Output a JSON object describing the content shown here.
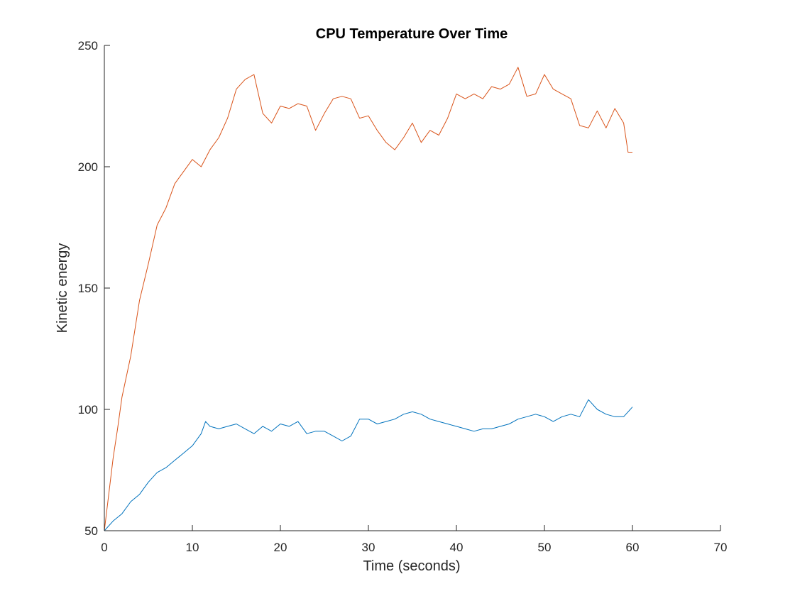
{
  "chart_data": {
    "type": "line",
    "title": "CPU Temperature Over Time",
    "xlabel": "Time (seconds)",
    "ylabel": "Kinetic energy",
    "xlim": [
      0,
      70
    ],
    "ylim": [
      50,
      250
    ],
    "xticks": [
      "0",
      "10",
      "20",
      "30",
      "40",
      "50",
      "60",
      "70"
    ],
    "yticks": [
      "50",
      "100",
      "150",
      "200",
      "250"
    ],
    "grid": false,
    "legend": "none",
    "series": [
      {
        "color": "#0072BD",
        "x": [
          0,
          1,
          2,
          3,
          4,
          5,
          6,
          7,
          8,
          9,
          10,
          11,
          11.5,
          12,
          13,
          14,
          15,
          16,
          17,
          18,
          19,
          20,
          21,
          22,
          23,
          24,
          25,
          26,
          27,
          28,
          29,
          30,
          31,
          32,
          33,
          34,
          35,
          36,
          37,
          38,
          39,
          40,
          41,
          42,
          43,
          44,
          45,
          46,
          47,
          48,
          49,
          50,
          51,
          52,
          53,
          54,
          55,
          56,
          57,
          58,
          59,
          60
        ],
        "y": [
          50,
          54,
          57,
          62,
          65,
          70,
          74,
          76,
          79,
          82,
          85,
          90,
          95,
          93,
          92,
          93,
          94,
          92,
          90,
          93,
          91,
          94,
          93,
          95,
          90,
          91,
          91,
          89,
          87,
          89,
          96,
          96,
          94,
          95,
          96,
          98,
          99,
          98,
          96,
          95,
          94,
          93,
          92,
          91,
          92,
          92,
          93,
          94,
          96,
          97,
          98,
          97,
          95,
          97,
          98,
          97,
          104,
          100,
          98,
          97,
          97,
          101
        ]
      },
      {
        "color": "#D95319",
        "x": [
          0,
          0.5,
          1,
          1.5,
          2,
          3,
          4,
          5,
          6,
          7,
          8,
          9,
          10,
          11,
          12,
          13,
          14,
          15,
          16,
          17,
          18,
          19,
          20,
          21,
          22,
          23,
          24,
          25,
          26,
          27,
          28,
          29,
          30,
          31,
          32,
          33,
          34,
          35,
          36,
          37,
          38,
          39,
          40,
          41,
          42,
          43,
          44,
          45,
          46,
          47,
          48,
          49,
          50,
          51,
          52,
          53,
          54,
          55,
          56,
          57,
          58,
          59,
          59.5,
          60
        ],
        "y": [
          50,
          65,
          80,
          92,
          105,
          122,
          145,
          160,
          176,
          183,
          193,
          198,
          203,
          200,
          207,
          212,
          220,
          232,
          236,
          238,
          222,
          218,
          225,
          224,
          226,
          225,
          215,
          222,
          228,
          229,
          228,
          220,
          221,
          215,
          210,
          207,
          212,
          218,
          210,
          215,
          213,
          220,
          230,
          228,
          230,
          228,
          233,
          232,
          234,
          241,
          229,
          230,
          238,
          232,
          230,
          228,
          217,
          216,
          223,
          216,
          224,
          218,
          206,
          206
        ]
      }
    ]
  }
}
